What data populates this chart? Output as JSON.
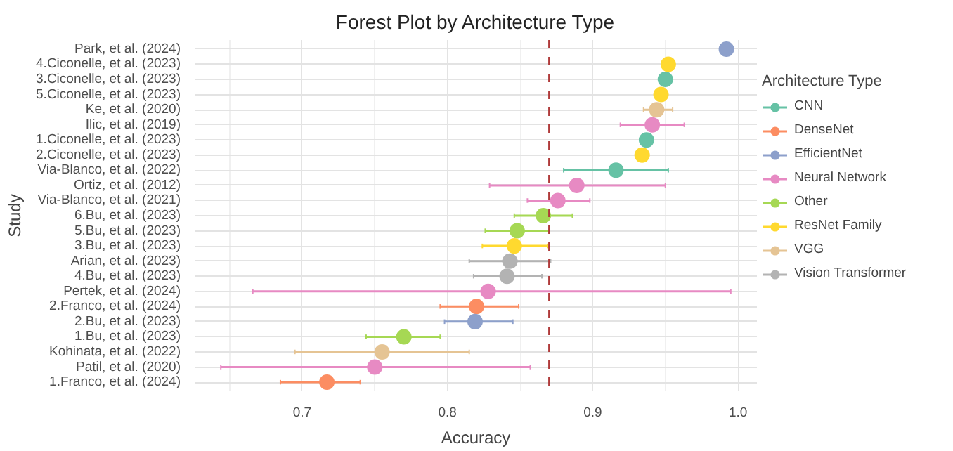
{
  "chart_data": {
    "type": "scatter",
    "orientation": "horizontal",
    "title": "Forest Plot by Architecture Type",
    "xlabel": "Accuracy",
    "ylabel": "Study",
    "legend_title": "Architecture Type",
    "legend": "right",
    "grid": true,
    "marker": "circle",
    "categories": [
      "Park, et al. (2024)",
      "4.Ciconelle, et al. (2023)",
      "3.Ciconelle, et al. (2023)",
      "5.Ciconelle, et al. (2023)",
      "Ke, et al. (2020)",
      "Ilic, et al. (2019)",
      "1.Ciconelle, et al. (2023)",
      "2.Ciconelle, et al. (2023)",
      "Via-Blanco, et al. (2022)",
      "Ortiz, et al. (2012)",
      "Via-Blanco, et al. (2021)",
      "6.Bu, et al. (2023)",
      "5.Bu, et al. (2023)",
      "3.Bu, et al. (2023)",
      "Arian, et al. (2023)",
      "4.Bu, et al. (2023)",
      "Pertek, et al. (2024)",
      "2.Franco, et al. (2024)",
      "2.Bu, et al. (2023)",
      "1.Bu, et al. (2023)",
      "Kohinata, et al. (2022)",
      "Patil, et al. (2020)",
      "1.Franco, et al. (2024)"
    ],
    "xlim": [
      0.626,
      1.013
    ],
    "xticks": [
      0.7,
      0.8,
      0.9,
      {
        "value": 1.0,
        "label": "1.0"
      }
    ],
    "ref_lines": [
      {
        "axis": "x",
        "value": 0.87,
        "color": "#b03a3a",
        "line_style": "dashed"
      }
    ],
    "series": [
      {
        "name": "CNN",
        "color": "#66c2a5",
        "values": [
          null,
          null,
          0.95,
          null,
          null,
          null,
          0.937,
          null,
          0.916,
          null,
          null,
          null,
          null,
          null,
          null,
          null,
          null,
          null,
          null,
          null,
          null,
          null,
          null
        ],
        "errors": [
          null,
          null,
          null,
          null,
          null,
          null,
          null,
          null,
          [
            0.88,
            0.952
          ],
          null,
          null,
          null,
          null,
          null,
          null,
          null,
          null,
          null,
          null,
          null,
          null,
          null,
          null
        ]
      },
      {
        "name": "DenseNet",
        "color": "#fc8d62",
        "values": [
          null,
          null,
          null,
          null,
          null,
          null,
          null,
          null,
          null,
          null,
          null,
          null,
          null,
          null,
          null,
          null,
          null,
          0.82,
          null,
          null,
          null,
          null,
          0.717
        ],
        "errors": [
          null,
          null,
          null,
          null,
          null,
          null,
          null,
          null,
          null,
          null,
          null,
          null,
          null,
          null,
          null,
          null,
          null,
          [
            0.795,
            0.849
          ],
          null,
          null,
          null,
          null,
          [
            0.685,
            0.74
          ]
        ]
      },
      {
        "name": "EfficientNet",
        "color": "#8da0cb",
        "values": [
          0.992,
          null,
          null,
          null,
          null,
          null,
          null,
          null,
          null,
          null,
          null,
          null,
          null,
          null,
          null,
          null,
          null,
          null,
          0.819,
          null,
          null,
          null,
          null
        ],
        "errors": [
          null,
          null,
          null,
          null,
          null,
          null,
          null,
          null,
          null,
          null,
          null,
          null,
          null,
          null,
          null,
          null,
          null,
          null,
          [
            0.798,
            0.845
          ],
          null,
          null,
          null,
          null
        ]
      },
      {
        "name": "Neural Network",
        "color": "#e78ac3",
        "values": [
          null,
          null,
          null,
          null,
          null,
          0.941,
          null,
          null,
          null,
          0.889,
          0.876,
          null,
          null,
          null,
          null,
          null,
          0.828,
          null,
          null,
          null,
          null,
          0.75,
          null
        ],
        "errors": [
          null,
          null,
          null,
          null,
          null,
          [
            0.919,
            0.963
          ],
          null,
          null,
          null,
          [
            0.829,
            0.95
          ],
          [
            0.855,
            0.898
          ],
          null,
          null,
          null,
          null,
          null,
          [
            0.666,
            0.995
          ],
          null,
          null,
          null,
          null,
          [
            0.644,
            0.857
          ],
          null
        ]
      },
      {
        "name": "Other",
        "color": "#a6d854",
        "values": [
          null,
          null,
          null,
          null,
          null,
          null,
          null,
          null,
          null,
          null,
          null,
          0.866,
          0.848,
          null,
          null,
          null,
          null,
          null,
          null,
          0.77,
          null,
          null,
          null
        ],
        "errors": [
          null,
          null,
          null,
          null,
          null,
          null,
          null,
          null,
          null,
          null,
          null,
          [
            0.846,
            0.886
          ],
          [
            0.826,
            0.87
          ],
          null,
          null,
          null,
          null,
          null,
          null,
          [
            0.744,
            0.795
          ],
          null,
          null,
          null
        ]
      },
      {
        "name": "ResNet Family",
        "color": "#ffd92f",
        "values": [
          null,
          0.952,
          null,
          0.947,
          null,
          null,
          null,
          0.934,
          null,
          null,
          null,
          null,
          null,
          0.846,
          null,
          null,
          null,
          null,
          null,
          null,
          null,
          null,
          null
        ],
        "errors": [
          null,
          null,
          null,
          null,
          null,
          null,
          null,
          null,
          null,
          null,
          null,
          null,
          null,
          [
            0.824,
            0.869
          ],
          null,
          null,
          null,
          null,
          null,
          null,
          null,
          null,
          null
        ]
      },
      {
        "name": "VGG",
        "color": "#e5c494",
        "values": [
          null,
          null,
          null,
          null,
          0.944,
          null,
          null,
          null,
          null,
          null,
          null,
          null,
          null,
          null,
          null,
          null,
          null,
          null,
          null,
          null,
          0.755,
          null,
          null
        ],
        "errors": [
          null,
          null,
          null,
          null,
          [
            0.935,
            0.955
          ],
          null,
          null,
          null,
          null,
          null,
          null,
          null,
          null,
          null,
          null,
          null,
          null,
          null,
          null,
          null,
          [
            0.695,
            0.815
          ],
          null,
          null
        ]
      },
      {
        "name": "Vision Transformer",
        "color": "#b3b3b3",
        "values": [
          null,
          null,
          null,
          null,
          null,
          null,
          null,
          null,
          null,
          null,
          null,
          null,
          null,
          null,
          0.843,
          0.841,
          null,
          null,
          null,
          null,
          null,
          null,
          null
        ],
        "errors": [
          null,
          null,
          null,
          null,
          null,
          null,
          null,
          null,
          null,
          null,
          null,
          null,
          null,
          null,
          [
            0.815,
            0.871
          ],
          [
            0.818,
            0.865
          ],
          null,
          null,
          null,
          null,
          null,
          null,
          null
        ]
      }
    ]
  }
}
